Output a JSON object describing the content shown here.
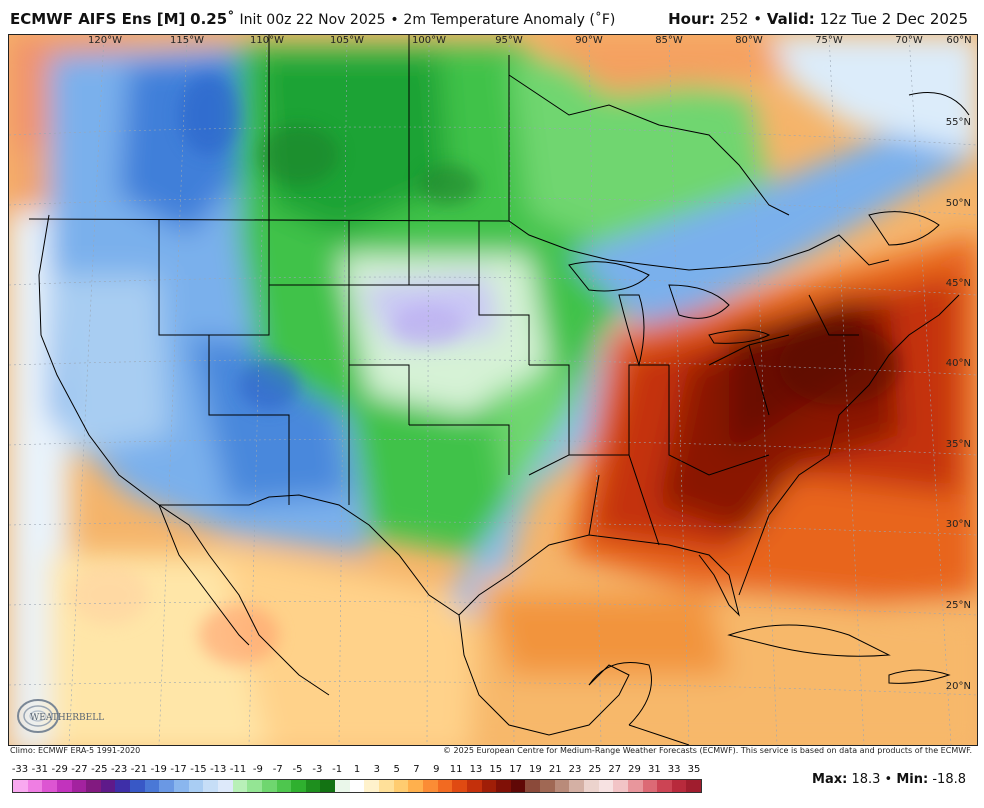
{
  "header": {
    "model": "ECMWF AIFS Ens [M]",
    "resolution": "0.25˚",
    "init": "Init 00z 22 Nov 2025",
    "separator": "•",
    "field": "2m Temperature Anomaly (˚F)",
    "hour_label": "Hour:",
    "hour_value": "252",
    "valid_label": "Valid:",
    "valid_value": "12z Tue 2 Dec 2025"
  },
  "map": {
    "longitude_labels": [
      "120°W",
      "115°W",
      "110°W",
      "105°W",
      "100°W",
      "95°W",
      "90°W",
      "85°W",
      "80°W",
      "75°W",
      "70°W",
      "60°N"
    ],
    "latitude_labels": [
      "55°N",
      "50°N",
      "45°N",
      "40°N",
      "35°N",
      "30°N",
      "25°N",
      "20°N"
    ],
    "logo_text": "WEATHERBELL"
  },
  "footer": {
    "climo": "Climo: ECMWF ERA-5 1991-2020",
    "copyright": "© 2025 European Centre for Medium-Range Weather Forecasts (ECMWF). This service is based on data and products of the ECMWF."
  },
  "colorbar": {
    "labels": [
      "-33",
      "-31",
      "-29",
      "-27",
      "-25",
      "-23",
      "-21",
      "-19",
      "-17",
      "-15",
      "-13",
      "-11",
      "-9",
      "-7",
      "-5",
      "-3",
      "-1",
      "1",
      "3",
      "5",
      "7",
      "9",
      "11",
      "13",
      "15",
      "17",
      "19",
      "21",
      "23",
      "25",
      "27",
      "29",
      "31",
      "33",
      "35"
    ],
    "colors": [
      "#f9a9f0",
      "#ef7ee3",
      "#dd55d2",
      "#c233bd",
      "#a3229f",
      "#821a80",
      "#5f1a8a",
      "#3e2fa8",
      "#3858c6",
      "#4a78d6",
      "#6a98e4",
      "#8ab6ee",
      "#a9cdf3",
      "#c6def7",
      "#dde9fa",
      "#b8f0b8",
      "#94e594",
      "#6fd66f",
      "#4ec64e",
      "#2fb02f",
      "#1e8f1e",
      "#137313",
      "#eaf7ea",
      "#ffffff",
      "#fff2cc",
      "#ffe099",
      "#ffcc70",
      "#ffb04d",
      "#fb8c35",
      "#f26a21",
      "#e04a12",
      "#c4300b",
      "#a01e07",
      "#801006",
      "#600806",
      "#8b4a3a",
      "#a06854",
      "#b98b7a",
      "#d4b0a4",
      "#ecd3cd",
      "#f7e2e2",
      "#f2c4c6",
      "#e8969c",
      "#dc6a75",
      "#cc4454",
      "#b82a3c",
      "#a01d2e"
    ],
    "max_label": "Max:",
    "max_value": "18.3",
    "min_label": "Min:",
    "min_value": "-18.8",
    "separator": "•"
  }
}
